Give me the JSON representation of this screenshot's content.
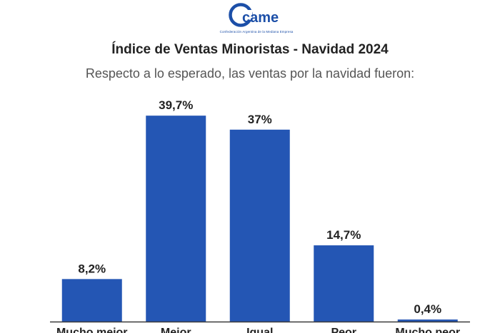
{
  "header": {
    "logo_text": "came",
    "logo_subtitle": "Confederación Argentina de la Mediana Empresa",
    "title": "Índice de Ventas Minoristas - Navidad 2024",
    "subtitle": "Respecto a lo esperado, las ventas por la navidad fueron:"
  },
  "colors": {
    "bar": "#2456b4",
    "axis": "#3a3a3a",
    "text": "#222222",
    "brand": "#1c4fa8"
  },
  "chart_data": {
    "type": "bar",
    "categories": [
      "Mucho mejor",
      "Mejor",
      "Igual",
      "Peor",
      "Mucho peor"
    ],
    "values": [
      8.2,
      39.7,
      37,
      14.7,
      0.4
    ],
    "value_labels": [
      "8,2%",
      "39,7%",
      "37%",
      "14,7%",
      "0,4%"
    ],
    "title": "Índice de Ventas Minoristas - Navidad 2024",
    "subtitle": "Respecto a lo esperado, las ventas por la navidad fueron:",
    "xlabel": "",
    "ylabel": "",
    "ylim": [
      0,
      40
    ],
    "grid": false,
    "legend": false
  }
}
